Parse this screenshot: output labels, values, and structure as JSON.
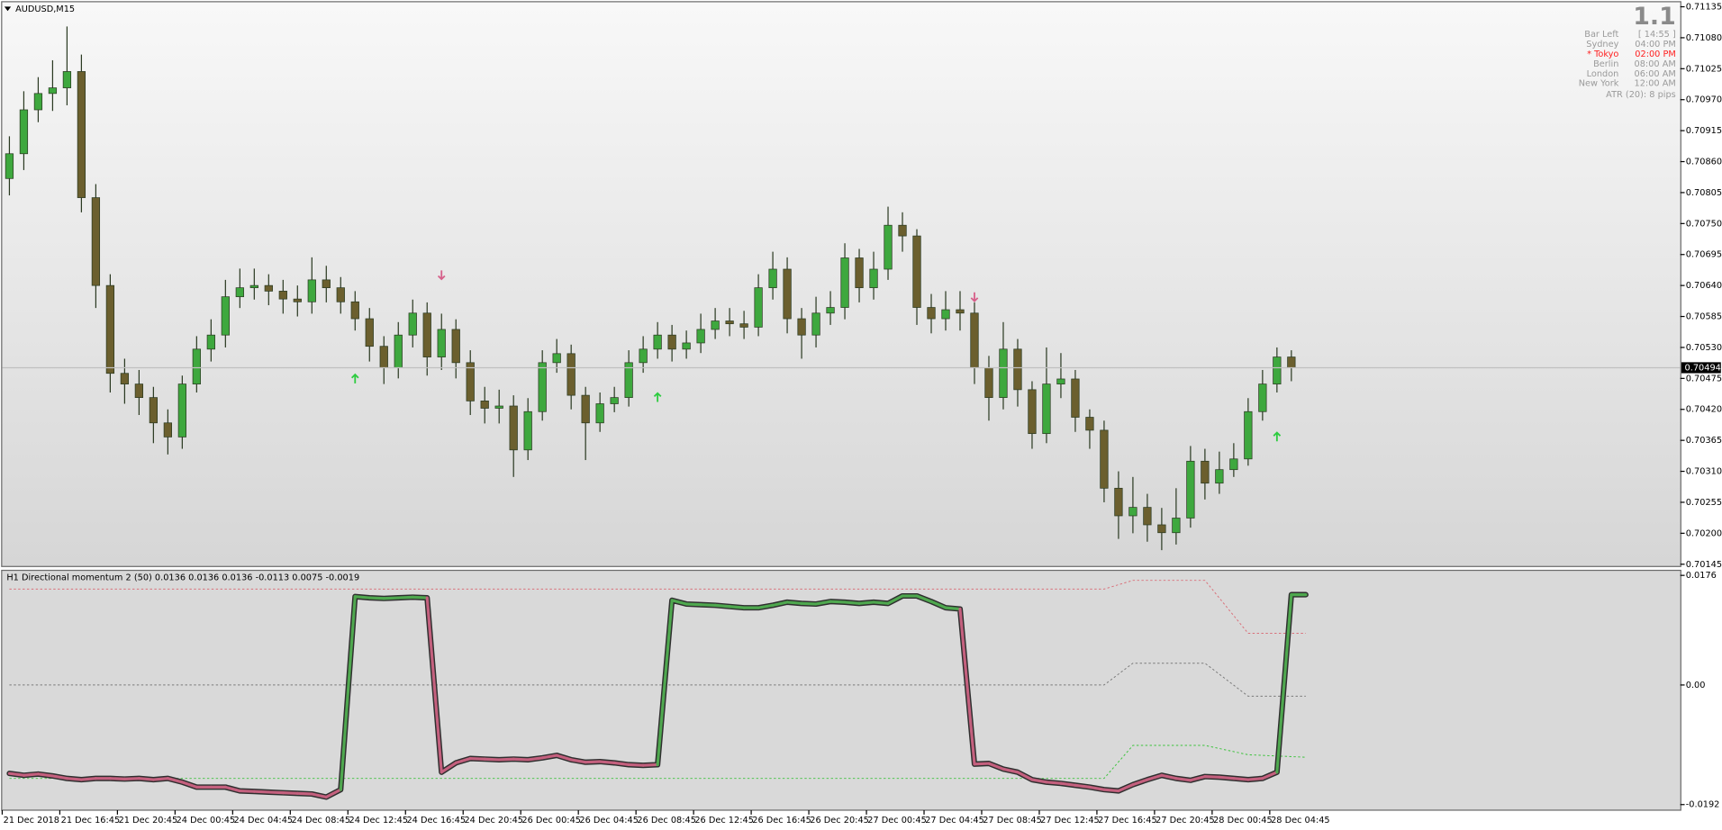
{
  "chart_data": [
    {
      "type": "candlestick",
      "title": "AUDUSD,M15",
      "xlim": [
        -0.5,
        116
      ],
      "ylim": [
        0.70141,
        0.71143
      ],
      "grid": false,
      "yticks": [
        0.71135,
        {
          "value": 0.7108,
          "label": "0.71080"
        },
        0.71025,
        {
          "value": 0.7097,
          "label": "0.70970"
        },
        0.70915,
        {
          "value": 0.7086,
          "label": "0.70860"
        },
        0.70805,
        {
          "value": 0.7075,
          "label": "0.70750"
        },
        0.70695,
        {
          "value": 0.7064,
          "label": "0.70640"
        },
        0.70585,
        {
          "value": 0.7053,
          "label": "0.70530"
        },
        0.70475,
        {
          "value": 0.7042,
          "label": "0.70420"
        },
        0.70365,
        {
          "value": 0.7031,
          "label": "0.70310"
        },
        0.70255,
        {
          "value": 0.702,
          "label": "0.70200"
        },
        0.70145
      ],
      "up_color": "#3ea83e",
      "down_color": "#6b5f2e",
      "wick_color": "#2b3a22",
      "open": [
        0.7083,
        0.70874,
        0.70952,
        0.70981,
        0.70991,
        0.7102,
        0.70796,
        0.7064,
        0.70484,
        0.70465,
        0.70441,
        0.70396,
        0.70371,
        0.70465,
        0.70527,
        0.70552,
        0.7062,
        0.70636,
        0.7064,
        0.7063,
        0.70616,
        0.70611,
        0.7065,
        0.70636,
        0.70611,
        0.70581,
        0.70532,
        0.70494,
        0.70552,
        0.70591,
        0.70513,
        0.70562,
        0.70503,
        0.70435,
        0.70422,
        0.70426,
        0.70348,
        0.70416,
        0.70503,
        0.70519,
        0.70445,
        0.70396,
        0.7043,
        0.70441,
        0.70503,
        0.70527,
        0.70552,
        0.70527,
        0.70538,
        0.70562,
        0.70577,
        0.70572,
        0.70566,
        0.70636,
        0.70669,
        0.70581,
        0.70552,
        0.70591,
        0.70601,
        0.70689,
        0.70636,
        0.70669,
        0.70747,
        0.70728,
        0.70601,
        0.70581,
        0.70597,
        0.70591,
        0.70494,
        0.70441,
        0.70527,
        0.70455,
        0.70377,
        0.70465,
        0.70474,
        0.70406,
        0.70383,
        0.7028,
        0.70231,
        0.70246,
        0.70215,
        0.70201,
        0.70227,
        0.70328,
        0.70289,
        0.70313,
        0.70332,
        0.70416,
        0.70465,
        0.70513
      ],
      "high": [
        0.70905,
        0.70985,
        0.7101,
        0.7104,
        0.711,
        0.7105,
        0.7082,
        0.7066,
        0.7051,
        0.7049,
        0.7046,
        0.7042,
        0.7048,
        0.7055,
        0.7058,
        0.7065,
        0.7067,
        0.7067,
        0.7066,
        0.7065,
        0.7064,
        0.7069,
        0.70675,
        0.70655,
        0.7063,
        0.706,
        0.7055,
        0.70575,
        0.70615,
        0.7061,
        0.7059,
        0.7058,
        0.70525,
        0.7046,
        0.70455,
        0.70445,
        0.7044,
        0.70525,
        0.70545,
        0.70535,
        0.7046,
        0.7045,
        0.7046,
        0.70525,
        0.7055,
        0.70575,
        0.7057,
        0.7056,
        0.7059,
        0.706,
        0.706,
        0.70595,
        0.7066,
        0.707,
        0.7069,
        0.706,
        0.7062,
        0.7063,
        0.70715,
        0.70705,
        0.707,
        0.7078,
        0.7077,
        0.7074,
        0.70625,
        0.7063,
        0.7063,
        0.7061,
        0.70515,
        0.70575,
        0.70545,
        0.7047,
        0.7053,
        0.7052,
        0.7049,
        0.7042,
        0.704,
        0.7031,
        0.703,
        0.7027,
        0.70245,
        0.7028,
        0.70355,
        0.7035,
        0.70345,
        0.7036,
        0.7044,
        0.7049,
        0.7053,
        0.70525
      ],
      "low": [
        0.708,
        0.70845,
        0.7093,
        0.7095,
        0.7096,
        0.7077,
        0.706,
        0.7045,
        0.7043,
        0.7041,
        0.7036,
        0.7034,
        0.7035,
        0.7045,
        0.70505,
        0.7053,
        0.706,
        0.70615,
        0.70605,
        0.7059,
        0.70585,
        0.7059,
        0.7061,
        0.7059,
        0.7056,
        0.70505,
        0.70465,
        0.70475,
        0.7053,
        0.7048,
        0.7049,
        0.70475,
        0.7041,
        0.70395,
        0.70395,
        0.703,
        0.7033,
        0.704,
        0.70485,
        0.7042,
        0.7033,
        0.7038,
        0.70415,
        0.70425,
        0.70485,
        0.7051,
        0.70505,
        0.7051,
        0.7052,
        0.70545,
        0.7055,
        0.70545,
        0.7055,
        0.70615,
        0.70555,
        0.7051,
        0.7053,
        0.7057,
        0.7058,
        0.7061,
        0.70615,
        0.7065,
        0.707,
        0.7057,
        0.70555,
        0.7056,
        0.7056,
        0.70465,
        0.704,
        0.7042,
        0.70425,
        0.7035,
        0.7036,
        0.7044,
        0.7038,
        0.7035,
        0.70255,
        0.7019,
        0.702,
        0.70185,
        0.7017,
        0.7018,
        0.7021,
        0.7026,
        0.7027,
        0.703,
        0.7032,
        0.704,
        0.7045,
        0.7047
      ],
      "close": [
        0.70874,
        0.70952,
        0.70981,
        0.70991,
        0.7102,
        0.70796,
        0.7064,
        0.70484,
        0.70465,
        0.70441,
        0.70396,
        0.70371,
        0.70465,
        0.70527,
        0.70552,
        0.7062,
        0.70636,
        0.7064,
        0.7063,
        0.70616,
        0.70611,
        0.7065,
        0.70636,
        0.70611,
        0.70581,
        0.70532,
        0.70494,
        0.70552,
        0.70591,
        0.70513,
        0.70562,
        0.70503,
        0.70435,
        0.70422,
        0.70426,
        0.70348,
        0.70416,
        0.70503,
        0.70519,
        0.70445,
        0.70396,
        0.7043,
        0.70441,
        0.70503,
        0.70527,
        0.70552,
        0.70527,
        0.70538,
        0.70562,
        0.70577,
        0.70572,
        0.70566,
        0.70636,
        0.70669,
        0.70581,
        0.70552,
        0.70591,
        0.70601,
        0.70689,
        0.70636,
        0.70669,
        0.70747,
        0.70728,
        0.70601,
        0.70581,
        0.70597,
        0.70591,
        0.70494,
        0.70441,
        0.70527,
        0.70455,
        0.70377,
        0.70465,
        0.70474,
        0.70406,
        0.70383,
        0.7028,
        0.70231,
        0.70246,
        0.70215,
        0.70201,
        0.70227,
        0.70328,
        0.70289,
        0.70313,
        0.70332,
        0.70416,
        0.70465,
        0.70513,
        0.70494
      ],
      "current_price": 0.70494,
      "current_color": "#c0c0c0",
      "up_arrows": {
        "bar": [
          24,
          45,
          88
        ],
        "price": [
          0.70474,
          0.70441,
          0.70371
        ],
        "color": "#2ecc40"
      },
      "down_arrows": {
        "bar": [
          30,
          67
        ],
        "price": [
          0.70659,
          0.7062
        ],
        "color": "#d6608a"
      },
      "info": {
        "header": "1.1",
        "rows": [
          [
            "Bar Left",
            "[ 14:55 ]"
          ],
          [
            "Sydney",
            "04:00 PM"
          ],
          [
            "* Tokyo",
            "02:00 PM"
          ],
          [
            "Berlin",
            "08:00 AM"
          ],
          [
            "London",
            "06:00 AM"
          ],
          [
            "New York",
            "12:00 AM"
          ]
        ],
        "highlight_row": 2,
        "highlight_color": "#ff2020",
        "footer": "ATR (20): 8 pips"
      }
    },
    {
      "type": "line",
      "title": "H1 Directional momentum 2 (50) 0.0136 0.0136 0.0136 -0.0113 0.0075 -0.0019",
      "xlim": [
        -0.5,
        116
      ],
      "ylim": [
        -0.0201,
        0.0185
      ],
      "yticks": [
        0.0176,
        {
          "value": 0,
          "label": "0.00"
        },
        -0.0192
      ],
      "xticks": [
        {
          "value": -0.5,
          "label": "21 Dec 2018"
        },
        {
          "value": 3.5,
          "label": "21 Dec 16:45"
        },
        {
          "value": 7.5,
          "label": "21 Dec 20:45"
        },
        {
          "value": 11.5,
          "label": "24 Dec 00:45"
        },
        {
          "value": 15.5,
          "label": "24 Dec 04:45"
        },
        {
          "value": 19.5,
          "label": "24 Dec 08:45"
        },
        {
          "value": 23.5,
          "label": "24 Dec 12:45"
        },
        {
          "value": 27.5,
          "label": "24 Dec 16:45"
        },
        {
          "value": 31.5,
          "label": "24 Dec 20:45"
        },
        {
          "value": 35.5,
          "label": "26 Dec 00:45"
        },
        {
          "value": 39.5,
          "label": "26 Dec 04:45"
        },
        {
          "value": 43.5,
          "label": "26 Dec 08:45"
        },
        {
          "value": 47.5,
          "label": "26 Dec 12:45"
        },
        {
          "value": 51.5,
          "label": "26 Dec 16:45"
        },
        {
          "value": 55.5,
          "label": "26 Dec 20:45"
        },
        {
          "value": 59.5,
          "label": "27 Dec 00:45"
        },
        {
          "value": 63.5,
          "label": "27 Dec 04:45"
        },
        {
          "value": 67.5,
          "label": "27 Dec 08:45"
        },
        {
          "value": 71.5,
          "label": "27 Dec 12:45"
        },
        {
          "value": 75.5,
          "label": "27 Dec 16:45"
        },
        {
          "value": 79.5,
          "label": "27 Dec 20:45"
        },
        {
          "value": 83.5,
          "label": "28 Dec 00:45"
        },
        {
          "value": 87.5,
          "label": "28 Dec 04:45"
        }
      ],
      "main": {
        "up_color": "#4fa84f",
        "down_color": "#c4607e",
        "outline_color": "#2f2f2f",
        "values": [
          -0.0142,
          -0.0145,
          -0.0143,
          -0.0146,
          -0.015,
          -0.0152,
          -0.015,
          -0.015,
          -0.0151,
          -0.015,
          -0.0152,
          -0.015,
          -0.0156,
          -0.0164,
          -0.0164,
          -0.0164,
          -0.017,
          -0.0171,
          -0.0172,
          -0.0173,
          -0.0174,
          -0.0175,
          -0.018,
          -0.0168,
          0.0142,
          0.014,
          0.0139,
          0.014,
          0.0141,
          0.014,
          -0.014,
          -0.0125,
          -0.0118,
          -0.0119,
          -0.012,
          -0.0119,
          -0.012,
          -0.0117,
          -0.0113,
          -0.012,
          -0.0124,
          -0.0123,
          -0.0125,
          -0.0128,
          -0.0129,
          -0.0128,
          0.0136,
          0.013,
          0.0129,
          0.0128,
          0.0126,
          0.0124,
          0.0124,
          0.0128,
          0.0133,
          0.0131,
          0.013,
          0.0134,
          0.0133,
          0.0131,
          0.0133,
          0.0131,
          0.0143,
          0.0143,
          0.0134,
          0.0124,
          0.0122,
          -0.0127,
          -0.0126,
          -0.0135,
          -0.014,
          -0.0152,
          -0.0156,
          -0.0158,
          -0.0161,
          -0.0164,
          -0.0168,
          -0.017,
          -0.016,
          -0.0152,
          -0.0145,
          -0.015,
          -0.0153,
          -0.0147,
          -0.0148,
          -0.015,
          -0.0152,
          -0.015,
          -0.014,
          0.0145,
          0.0145
        ]
      },
      "series": [
        {
          "color": "#d9707a",
          "x": [
            0,
            76,
            78,
            83,
            86,
            90
          ],
          "values": [
            0.0154,
            0.0154,
            0.0168,
            0.0168,
            0.0083,
            0.0083
          ]
        },
        {
          "color": "#7a7a7a",
          "x": [
            0,
            76,
            78,
            83,
            86,
            90
          ],
          "values": [
            0,
            0,
            0.0035,
            0.0035,
            -0.0018,
            -0.0018
          ]
        },
        {
          "color": "#3cc23c",
          "x": [
            0,
            76,
            78,
            83,
            86,
            90
          ],
          "values": [
            -0.015,
            -0.015,
            -0.0097,
            -0.0097,
            -0.0112,
            -0.0116
          ]
        }
      ]
    }
  ]
}
